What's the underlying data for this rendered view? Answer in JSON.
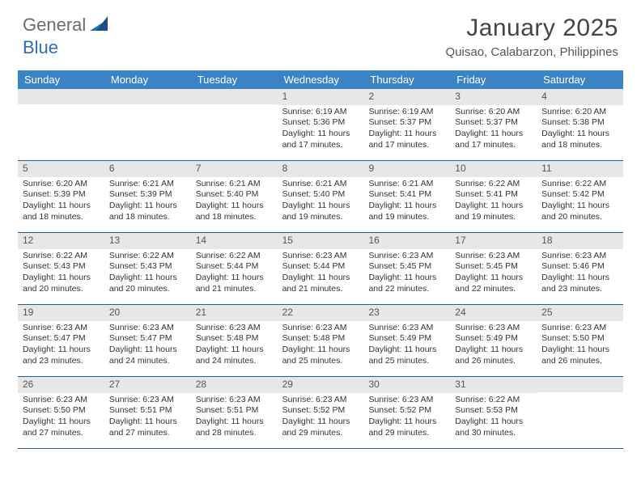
{
  "brand": {
    "part1": "General",
    "part2": "Blue"
  },
  "title": "January 2025",
  "location": "Quisao, Calabarzon, Philippines",
  "colors": {
    "header_bg": "#3a84c6",
    "header_text": "#ffffff",
    "date_bar_bg": "#e7e7e7",
    "week_divider": "#2b5b86",
    "brand_gray": "#6b6b6b",
    "brand_blue": "#2c6fb3"
  },
  "day_headers": [
    "Sunday",
    "Monday",
    "Tuesday",
    "Wednesday",
    "Thursday",
    "Friday",
    "Saturday"
  ],
  "weeks": [
    [
      {
        "date": "",
        "sunrise": "",
        "sunset": "",
        "daylight": ""
      },
      {
        "date": "",
        "sunrise": "",
        "sunset": "",
        "daylight": ""
      },
      {
        "date": "",
        "sunrise": "",
        "sunset": "",
        "daylight": ""
      },
      {
        "date": "1",
        "sunrise": "Sunrise: 6:19 AM",
        "sunset": "Sunset: 5:36 PM",
        "daylight": "Daylight: 11 hours and 17 minutes."
      },
      {
        "date": "2",
        "sunrise": "Sunrise: 6:19 AM",
        "sunset": "Sunset: 5:37 PM",
        "daylight": "Daylight: 11 hours and 17 minutes."
      },
      {
        "date": "3",
        "sunrise": "Sunrise: 6:20 AM",
        "sunset": "Sunset: 5:37 PM",
        "daylight": "Daylight: 11 hours and 17 minutes."
      },
      {
        "date": "4",
        "sunrise": "Sunrise: 6:20 AM",
        "sunset": "Sunset: 5:38 PM",
        "daylight": "Daylight: 11 hours and 18 minutes."
      }
    ],
    [
      {
        "date": "5",
        "sunrise": "Sunrise: 6:20 AM",
        "sunset": "Sunset: 5:39 PM",
        "daylight": "Daylight: 11 hours and 18 minutes."
      },
      {
        "date": "6",
        "sunrise": "Sunrise: 6:21 AM",
        "sunset": "Sunset: 5:39 PM",
        "daylight": "Daylight: 11 hours and 18 minutes."
      },
      {
        "date": "7",
        "sunrise": "Sunrise: 6:21 AM",
        "sunset": "Sunset: 5:40 PM",
        "daylight": "Daylight: 11 hours and 18 minutes."
      },
      {
        "date": "8",
        "sunrise": "Sunrise: 6:21 AM",
        "sunset": "Sunset: 5:40 PM",
        "daylight": "Daylight: 11 hours and 19 minutes."
      },
      {
        "date": "9",
        "sunrise": "Sunrise: 6:21 AM",
        "sunset": "Sunset: 5:41 PM",
        "daylight": "Daylight: 11 hours and 19 minutes."
      },
      {
        "date": "10",
        "sunrise": "Sunrise: 6:22 AM",
        "sunset": "Sunset: 5:41 PM",
        "daylight": "Daylight: 11 hours and 19 minutes."
      },
      {
        "date": "11",
        "sunrise": "Sunrise: 6:22 AM",
        "sunset": "Sunset: 5:42 PM",
        "daylight": "Daylight: 11 hours and 20 minutes."
      }
    ],
    [
      {
        "date": "12",
        "sunrise": "Sunrise: 6:22 AM",
        "sunset": "Sunset: 5:43 PM",
        "daylight": "Daylight: 11 hours and 20 minutes."
      },
      {
        "date": "13",
        "sunrise": "Sunrise: 6:22 AM",
        "sunset": "Sunset: 5:43 PM",
        "daylight": "Daylight: 11 hours and 20 minutes."
      },
      {
        "date": "14",
        "sunrise": "Sunrise: 6:22 AM",
        "sunset": "Sunset: 5:44 PM",
        "daylight": "Daylight: 11 hours and 21 minutes."
      },
      {
        "date": "15",
        "sunrise": "Sunrise: 6:23 AM",
        "sunset": "Sunset: 5:44 PM",
        "daylight": "Daylight: 11 hours and 21 minutes."
      },
      {
        "date": "16",
        "sunrise": "Sunrise: 6:23 AM",
        "sunset": "Sunset: 5:45 PM",
        "daylight": "Daylight: 11 hours and 22 minutes."
      },
      {
        "date": "17",
        "sunrise": "Sunrise: 6:23 AM",
        "sunset": "Sunset: 5:45 PM",
        "daylight": "Daylight: 11 hours and 22 minutes."
      },
      {
        "date": "18",
        "sunrise": "Sunrise: 6:23 AM",
        "sunset": "Sunset: 5:46 PM",
        "daylight": "Daylight: 11 hours and 23 minutes."
      }
    ],
    [
      {
        "date": "19",
        "sunrise": "Sunrise: 6:23 AM",
        "sunset": "Sunset: 5:47 PM",
        "daylight": "Daylight: 11 hours and 23 minutes."
      },
      {
        "date": "20",
        "sunrise": "Sunrise: 6:23 AM",
        "sunset": "Sunset: 5:47 PM",
        "daylight": "Daylight: 11 hours and 24 minutes."
      },
      {
        "date": "21",
        "sunrise": "Sunrise: 6:23 AM",
        "sunset": "Sunset: 5:48 PM",
        "daylight": "Daylight: 11 hours and 24 minutes."
      },
      {
        "date": "22",
        "sunrise": "Sunrise: 6:23 AM",
        "sunset": "Sunset: 5:48 PM",
        "daylight": "Daylight: 11 hours and 25 minutes."
      },
      {
        "date": "23",
        "sunrise": "Sunrise: 6:23 AM",
        "sunset": "Sunset: 5:49 PM",
        "daylight": "Daylight: 11 hours and 25 minutes."
      },
      {
        "date": "24",
        "sunrise": "Sunrise: 6:23 AM",
        "sunset": "Sunset: 5:49 PM",
        "daylight": "Daylight: 11 hours and 26 minutes."
      },
      {
        "date": "25",
        "sunrise": "Sunrise: 6:23 AM",
        "sunset": "Sunset: 5:50 PM",
        "daylight": "Daylight: 11 hours and 26 minutes."
      }
    ],
    [
      {
        "date": "26",
        "sunrise": "Sunrise: 6:23 AM",
        "sunset": "Sunset: 5:50 PM",
        "daylight": "Daylight: 11 hours and 27 minutes."
      },
      {
        "date": "27",
        "sunrise": "Sunrise: 6:23 AM",
        "sunset": "Sunset: 5:51 PM",
        "daylight": "Daylight: 11 hours and 27 minutes."
      },
      {
        "date": "28",
        "sunrise": "Sunrise: 6:23 AM",
        "sunset": "Sunset: 5:51 PM",
        "daylight": "Daylight: 11 hours and 28 minutes."
      },
      {
        "date": "29",
        "sunrise": "Sunrise: 6:23 AM",
        "sunset": "Sunset: 5:52 PM",
        "daylight": "Daylight: 11 hours and 29 minutes."
      },
      {
        "date": "30",
        "sunrise": "Sunrise: 6:23 AM",
        "sunset": "Sunset: 5:52 PM",
        "daylight": "Daylight: 11 hours and 29 minutes."
      },
      {
        "date": "31",
        "sunrise": "Sunrise: 6:22 AM",
        "sunset": "Sunset: 5:53 PM",
        "daylight": "Daylight: 11 hours and 30 minutes."
      },
      {
        "date": "",
        "sunrise": "",
        "sunset": "",
        "daylight": ""
      }
    ]
  ]
}
